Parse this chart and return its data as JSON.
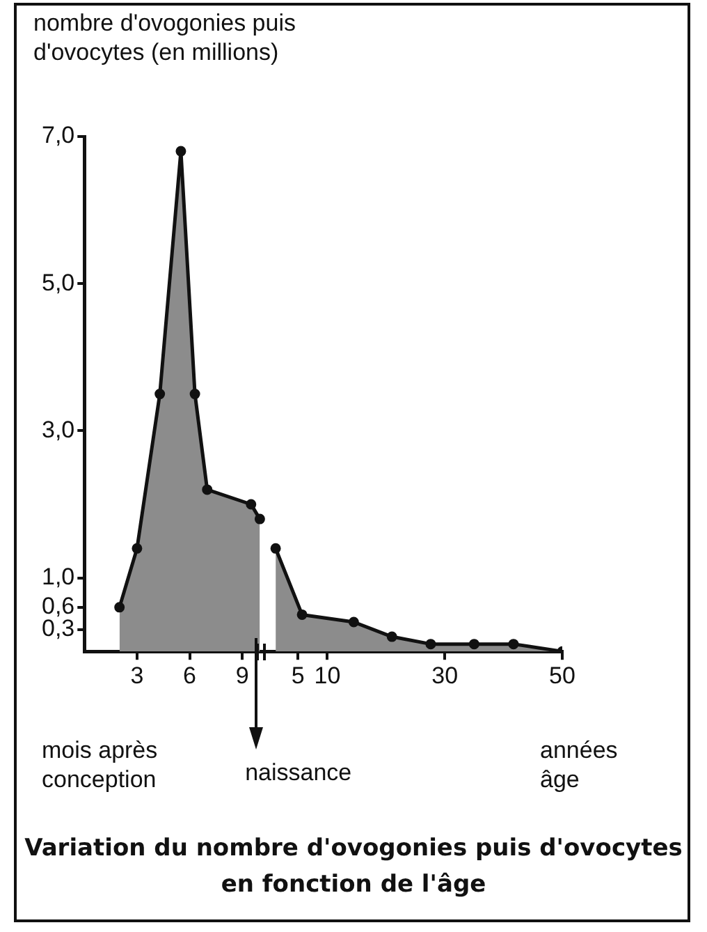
{
  "chart_data": [
    {
      "type": "area",
      "title": "Variation du nombre d'ovogonies puis d'ovocytes en fonction de l'âge",
      "ylabel": "nombre d'ovogonies puis d'ovocytes (en millions)",
      "annotations": [
        "mois après conception",
        "naissance"
      ],
      "series": [
        {
          "color": "#8c8c8c",
          "x": [
            2,
            3,
            4.3,
            5.5,
            6.3,
            7,
            9.5,
            10
          ],
          "values": [
            0.6,
            1.4,
            3.5,
            6.8,
            3.5,
            2.2,
            2.0,
            1.8
          ]
        }
      ],
      "xlim": [
        0,
        10.5
      ],
      "xticks": [
        3,
        6,
        9
      ],
      "ylim": [
        0,
        7
      ],
      "yticks": [
        {
          "value": 0.3,
          "label": "0,3"
        },
        {
          "value": 0.6,
          "label": "0,6"
        },
        {
          "value": 1,
          "label": "1,0"
        },
        {
          "value": 3,
          "label": "3,0"
        },
        {
          "value": 5,
          "label": "5,0"
        },
        {
          "value": 7,
          "label": "7,0"
        }
      ],
      "grid": false,
      "legend": false,
      "marker": "circle",
      "line_style": "solid"
    },
    {
      "type": "area",
      "annotations": [
        "années âge"
      ],
      "series": [
        {
          "color": "#8c8c8c",
          "x": [
            1.2,
            5.7,
            14.5,
            21,
            27.6,
            35,
            41.7,
            50
          ],
          "values": [
            1.4,
            0.5,
            0.4,
            0.2,
            0.1,
            0.1,
            0.1,
            0
          ]
        }
      ],
      "xlim": [
        0,
        50
      ],
      "xticks": [
        5,
        10,
        30,
        50
      ],
      "ylim": [
        0,
        7
      ],
      "tick_labels": "x",
      "grid": false,
      "legend": false,
      "marker": "circle",
      "line_style": "solid"
    }
  ]
}
